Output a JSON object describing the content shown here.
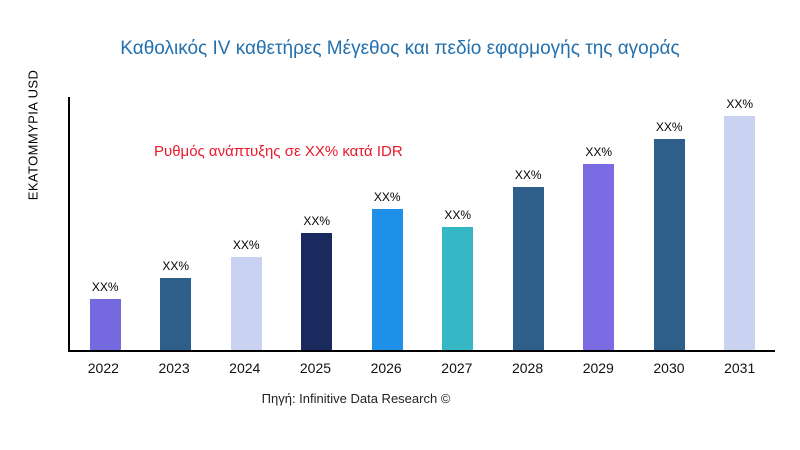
{
  "page": {
    "footer": "Πηγή: Infinitive Data Research ©"
  },
  "chart_data": {
    "type": "bar",
    "title": "Καθολικός IV καθετήρες Μέγεθος και πεδίο εφαρμογής της αγοράς",
    "title_color": "#2471ae",
    "ylabel": "ΕΚΑΤΟΜΜΥΡΙΑ USD",
    "xlabel": "",
    "annotation": "Ρυθμός ανάπτυξης σε XX% κατά IDR",
    "annotation_color": "#e8192c",
    "categories": [
      "2022",
      "2023",
      "2024",
      "2025",
      "2026",
      "2027",
      "2028",
      "2029",
      "2030",
      "2031"
    ],
    "value_labels": [
      "XX%",
      "XX%",
      "XX%",
      "XX%",
      "XX%",
      "XX%",
      "XX%",
      "XX%",
      "XX%",
      "XX%"
    ],
    "values_relative": [
      21.6,
      30.6,
      39.7,
      50.0,
      60.3,
      52.6,
      69.8,
      79.3,
      90.1,
      100.0
    ],
    "ylim": [
      0,
      108
    ],
    "bar_colors": [
      "#7569e0",
      "#2d5f8a",
      "#c9d2f1",
      "#1b2a5e",
      "#1e90e8",
      "#35b7c6",
      "#2d5f8a",
      "#7b6ce4",
      "#2d5f8a",
      "#c9d2f1"
    ],
    "grid": false,
    "legend": "none"
  }
}
